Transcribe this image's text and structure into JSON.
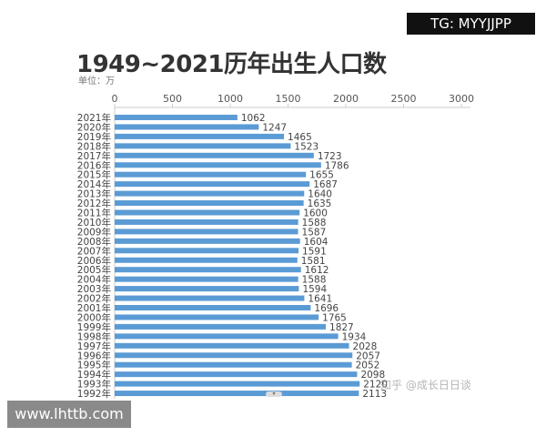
{
  "badge": "TG: MYYJJPP",
  "site": "www.lhttb.com",
  "watermark": "知乎 @成长日日谈",
  "chart_data": {
    "type": "bar",
    "orientation": "horizontal",
    "title": "1949~2021历年出生人口数",
    "unit_label": "单位：万",
    "xlim": [
      0,
      3000
    ],
    "xticks": [
      0,
      500,
      1000,
      1500,
      2000,
      2500,
      3000
    ],
    "x_axis_position": "top",
    "grid": false,
    "bar_color": "#5b9bd5",
    "categories": [
      "2021年",
      "2020年",
      "2019年",
      "2018年",
      "2017年",
      "2016年",
      "2015年",
      "2014年",
      "2013年",
      "2012年",
      "2011年",
      "2010年",
      "2009年",
      "2008年",
      "2007年",
      "2006年",
      "2005年",
      "2004年",
      "2003年",
      "2002年",
      "2001年",
      "2000年",
      "1999年",
      "1998年",
      "1997年",
      "1996年",
      "1995年",
      "1994年",
      "1993年",
      "1992年"
    ],
    "values": [
      1062,
      1247,
      1465,
      1523,
      1723,
      1786,
      1655,
      1687,
      1640,
      1635,
      1600,
      1588,
      1587,
      1604,
      1591,
      1581,
      1612,
      1588,
      1594,
      1641,
      1696,
      1765,
      1827,
      1934,
      2028,
      2057,
      2052,
      2098,
      2120,
      2113
    ]
  }
}
